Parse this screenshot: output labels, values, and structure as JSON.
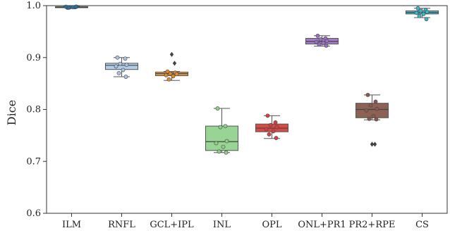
{
  "chart_data": {
    "type": "box",
    "title": "",
    "xlabel": "",
    "ylabel": "Dice",
    "ylim": [
      0.6,
      1.0
    ],
    "yticks": [
      "0.6",
      "0.7",
      "0.8",
      "0.9",
      "1.0"
    ],
    "grid": false,
    "legend": "none",
    "categories": [
      "ILM",
      "RNFL",
      "GCL+IPL",
      "INL",
      "OPL",
      "ONL+PR1",
      "PR2+RPE",
      "CS"
    ],
    "series": [
      {
        "category": "ILM",
        "color": "#2e6f9c",
        "box_color": "#3b7fb0",
        "whisker_low": 0.996,
        "q1": 0.996,
        "median": 0.997,
        "q3": 0.998,
        "whisker_high": 0.999,
        "points": [
          0.996,
          0.997,
          0.997,
          0.998,
          0.998,
          0.997,
          0.996,
          0.998
        ],
        "outliers": []
      },
      {
        "category": "RNFL",
        "color": "#a9c4e2",
        "box_color": "#b3cde8",
        "whisker_low": 0.863,
        "q1": 0.877,
        "median": 0.885,
        "q3": 0.889,
        "whisker_high": 0.9,
        "points": [
          0.9,
          0.898,
          0.888,
          0.886,
          0.883,
          0.876,
          0.87,
          0.863
        ],
        "outliers": []
      },
      {
        "category": "GCL+IPL",
        "color": "#e08a2e",
        "box_color": "#e89a42",
        "whisker_low": 0.856,
        "q1": 0.865,
        "median": 0.869,
        "q3": 0.872,
        "whisker_high": 0.873,
        "points": [
          0.873,
          0.871,
          0.869,
          0.868,
          0.866,
          0.864,
          0.858
        ],
        "outliers": [
          0.906,
          0.889
        ]
      },
      {
        "category": "INL",
        "color": "#8fcf8a",
        "box_color": "#98d493",
        "whisker_low": 0.717,
        "q1": 0.721,
        "median": 0.738,
        "q3": 0.768,
        "whisker_high": 0.802,
        "points": [
          0.802,
          0.768,
          0.766,
          0.739,
          0.735,
          0.728,
          0.719,
          0.717
        ],
        "outliers": []
      },
      {
        "category": "OPL",
        "color": "#d64040",
        "box_color": "#d94a46",
        "whisker_low": 0.744,
        "q1": 0.757,
        "median": 0.764,
        "q3": 0.772,
        "whisker_high": 0.788,
        "points": [
          0.788,
          0.775,
          0.77,
          0.766,
          0.762,
          0.758,
          0.752,
          0.745
        ],
        "outliers": []
      },
      {
        "category": "ONL+PR1",
        "color": "#9b6fc4",
        "box_color": "#a57ccc",
        "whisker_low": 0.922,
        "q1": 0.926,
        "median": 0.931,
        "q3": 0.937,
        "whisker_high": 0.942,
        "points": [
          0.942,
          0.937,
          0.935,
          0.932,
          0.93,
          0.928,
          0.925,
          0.923
        ],
        "outliers": []
      },
      {
        "category": "PR2+RPE",
        "color": "#8b5a4f",
        "box_color": "#8e6155",
        "whisker_low": 0.78,
        "q1": 0.784,
        "median": 0.8,
        "q3": 0.812,
        "whisker_high": 0.828,
        "points": [
          0.828,
          0.815,
          0.808,
          0.801,
          0.798,
          0.787,
          0.782,
          0.781
        ],
        "outliers": [
          0.733,
          0.733
        ]
      },
      {
        "category": "CS",
        "color": "#38b8c9",
        "box_color": "#45bfcf",
        "whisker_low": 0.977,
        "q1": 0.984,
        "median": 0.987,
        "q3": 0.99,
        "whisker_high": 0.995,
        "points": [
          0.995,
          0.992,
          0.99,
          0.988,
          0.986,
          0.984,
          0.98,
          0.974
        ],
        "outliers": []
      }
    ]
  }
}
